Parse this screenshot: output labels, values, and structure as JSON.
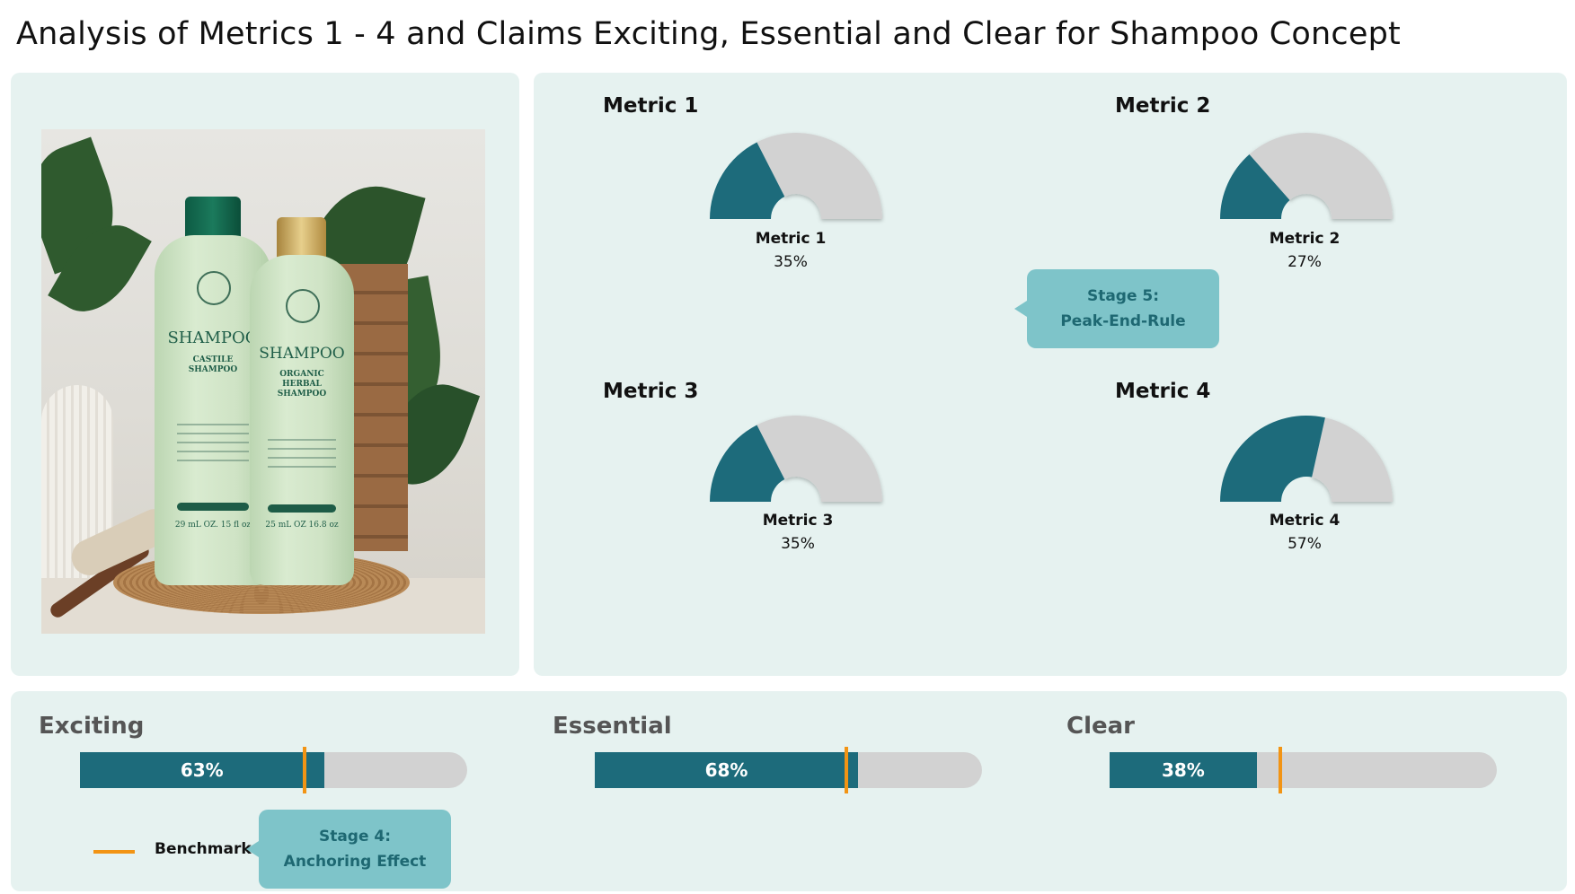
{
  "title": "Analysis of Metrics 1 - 4 and Claims Exciting, Essential and Clear for Shampoo Concept",
  "image": {
    "bottle_left": {
      "brand": "SHAMPOO",
      "name": "CASTILE SHAMPOO",
      "volume": "29 mL OZ. 15 fl oz"
    },
    "bottle_right": {
      "brand": "SHAMPOO",
      "name": "ORGANIC HERBAL SHAMPOO",
      "volume": "25 mL OZ 16.8 oz"
    }
  },
  "colors": {
    "fill": "#1d6b7b",
    "track": "#d2d2d2",
    "benchmark": "#f29414",
    "panel": "#e6f2f0",
    "callout": "#7ec4c9"
  },
  "callouts": {
    "peak_end": {
      "line1": "Stage 5:",
      "line2": "Peak-End-Rule"
    },
    "anchoring": {
      "line1": "Stage 4:",
      "line2": "Anchoring Effect"
    }
  },
  "legend": {
    "benchmark_label": "Benchmark"
  },
  "chart_data": [
    {
      "type": "gauge",
      "gauges": [
        {
          "title": "Metric 1",
          "label": "Metric 1",
          "value": 35,
          "display": "35%"
        },
        {
          "title": "Metric 2",
          "label": "Metric 2",
          "value": 27,
          "display": "27%"
        },
        {
          "title": "Metric 3",
          "label": "Metric 3",
          "value": 35,
          "display": "35%"
        },
        {
          "title": "Metric 4",
          "label": "Metric 4",
          "value": 57,
          "display": "57%"
        }
      ],
      "range": [
        0,
        100
      ]
    },
    {
      "type": "bar",
      "orientation": "horizontal",
      "bars": [
        {
          "title": "Exciting",
          "value": 63,
          "display": "63%",
          "benchmark": 58
        },
        {
          "title": "Essential",
          "value": 68,
          "display": "68%",
          "benchmark": 65
        },
        {
          "title": "Clear",
          "value": 38,
          "display": "38%",
          "benchmark": 44
        }
      ],
      "range": [
        0,
        100
      ],
      "legend": [
        "Benchmark"
      ]
    }
  ]
}
